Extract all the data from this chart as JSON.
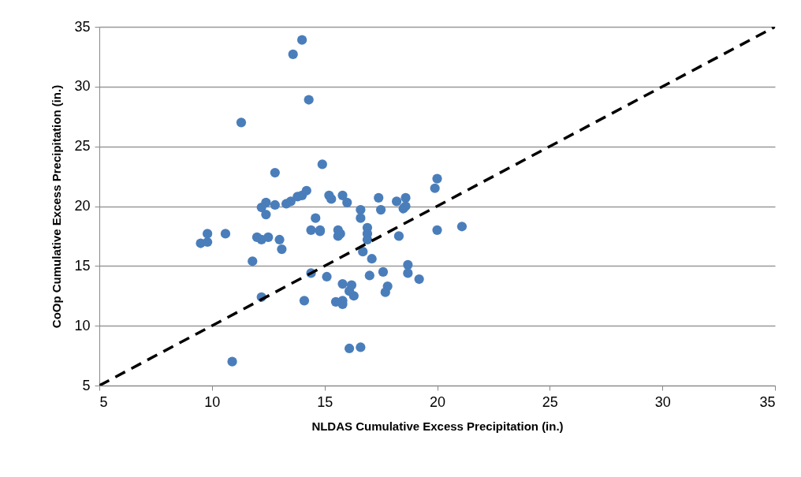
{
  "chart_data": {
    "type": "scatter",
    "xlabel": "NLDAS Cumulative Excess Precipitation (in.)",
    "ylabel": "CoOp Cumulative Excess Precipitation (in.)",
    "xlim": [
      5,
      35
    ],
    "ylim": [
      5,
      35
    ],
    "xticks": [
      5,
      10,
      15,
      20,
      25,
      30,
      35
    ],
    "yticks": [
      5,
      10,
      15,
      20,
      25,
      30,
      35
    ],
    "grid": "y",
    "series": [
      {
        "type": "scatter",
        "marker": "circle",
        "color": "#4a7ebb",
        "x": [
          9.5,
          9.8,
          9.8,
          10.6,
          10.9,
          11.3,
          11.8,
          12.0,
          12.2,
          12.2,
          12.2,
          12.4,
          12.4,
          12.5,
          12.8,
          12.8,
          13.0,
          13.1,
          13.3,
          13.5,
          13.6,
          13.8,
          14.0,
          14.0,
          14.1,
          14.2,
          14.3,
          14.4,
          14.4,
          14.6,
          14.8,
          14.8,
          14.9,
          15.1,
          15.2,
          15.3,
          15.5,
          15.6,
          15.6,
          15.7,
          15.8,
          15.8,
          15.8,
          15.8,
          16.0,
          16.1,
          16.1,
          16.2,
          16.3,
          16.6,
          16.6,
          16.7,
          16.6,
          16.9,
          16.9,
          16.9,
          17.0,
          17.1,
          17.4,
          17.5,
          17.6,
          17.8,
          17.7,
          18.2,
          18.3,
          18.5,
          18.6,
          18.6,
          18.7,
          18.7,
          19.2,
          19.9,
          20.0,
          20.0,
          21.1
        ],
        "values": [
          16.9,
          17.7,
          17.0,
          17.7,
          7.0,
          27.0,
          15.4,
          17.4,
          17.2,
          19.9,
          12.4,
          20.3,
          19.3,
          17.4,
          20.1,
          22.8,
          17.2,
          16.4,
          20.2,
          20.4,
          32.7,
          20.8,
          33.9,
          20.9,
          12.1,
          21.3,
          28.9,
          18.0,
          14.4,
          19.0,
          17.9,
          18.0,
          23.5,
          14.1,
          20.9,
          20.6,
          12.0,
          18.0,
          17.5,
          17.7,
          20.9,
          13.5,
          12.1,
          11.8,
          20.3,
          12.9,
          8.1,
          13.4,
          12.5,
          19.7,
          19.0,
          16.2,
          8.2,
          18.2,
          17.7,
          17.2,
          14.2,
          15.6,
          20.7,
          19.7,
          14.5,
          13.3,
          12.8,
          20.4,
          17.5,
          19.8,
          20.0,
          20.7,
          15.1,
          14.4,
          13.9,
          21.5,
          22.3,
          18.0,
          18.3
        ]
      },
      {
        "type": "line",
        "marker": "none",
        "color": "#000000",
        "line_style": "dashed",
        "x": [
          5,
          35
        ],
        "values": [
          5,
          35
        ]
      }
    ]
  }
}
